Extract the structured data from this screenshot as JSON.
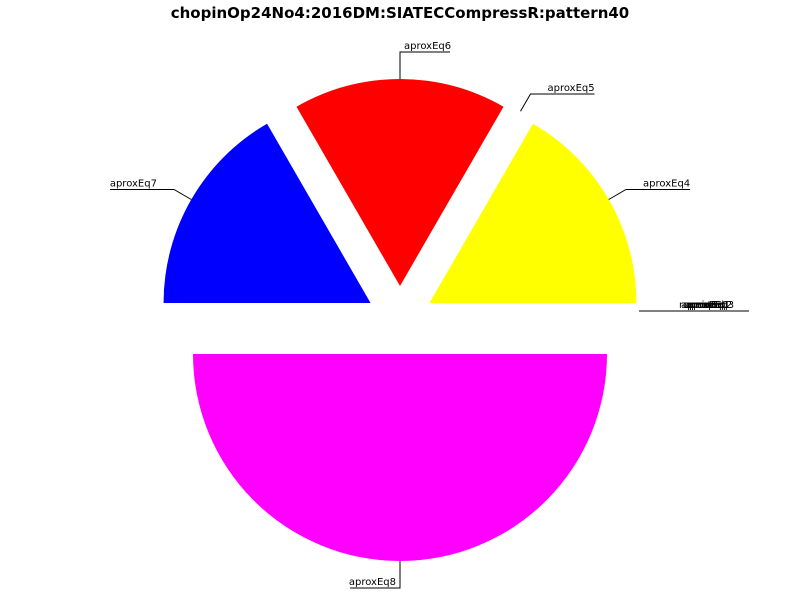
{
  "chart_data": {
    "type": "pie",
    "title": "chopinOp24No4:2016DM:SIATECCompressR:pattern40",
    "slices": [
      {
        "label": "aproxEq4",
        "value": 1,
        "color": "#ffff00",
        "exploded": true
      },
      {
        "label": "aproxEq5",
        "value": 0,
        "color": "#00ffff",
        "exploded": true
      },
      {
        "label": "aproxEq6",
        "value": 1,
        "color": "#ff0000",
        "exploded": true
      },
      {
        "label": "aproxEq7",
        "value": 1,
        "color": "#0000ff",
        "exploded": true
      },
      {
        "label": "aproxEq8",
        "value": 3,
        "color": "#ff00ff",
        "exploded": true
      }
    ],
    "zero_labels": [
      "repeated",
      "aproxEq0",
      "aproxEq1",
      "aproxEq2",
      "aproxEq3",
      "unique"
    ]
  }
}
